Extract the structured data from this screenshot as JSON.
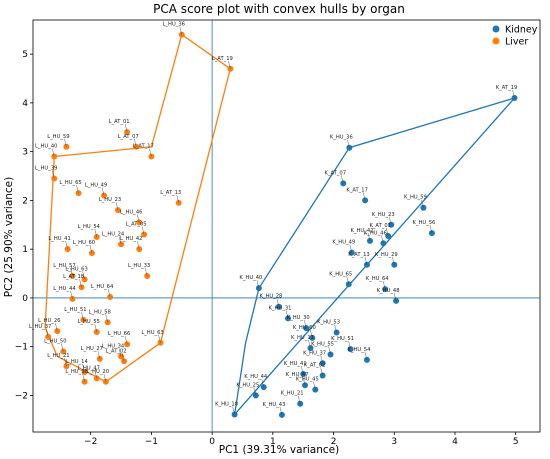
{
  "chart_data": {
    "type": "scatter",
    "title": "PCA score plot with convex hulls by organ",
    "xlabel": "PC1 (39.31% variance)",
    "ylabel": "PC2 (25.90% variance)",
    "xlim": [
      -2.95,
      5.4
    ],
    "ylim": [
      -2.75,
      5.7
    ],
    "xticks": [
      -2,
      -1,
      0,
      1,
      2,
      3,
      4,
      5
    ],
    "yticks": [
      -2,
      -1,
      0,
      1,
      2,
      3,
      4,
      5
    ],
    "reference_lines": {
      "x": 0,
      "y": 0,
      "color": "#1f77b4"
    },
    "grid": false,
    "legend_position": "top-right",
    "series": [
      {
        "name": "Kidney",
        "color": "#1f77b4",
        "hull": [
          [
            0.37,
            -2.39
          ],
          [
            4.98,
            4.1
          ],
          [
            2.26,
            3.08
          ],
          [
            0.77,
            0.2
          ],
          [
            0.55,
            -0.93
          ],
          [
            0.42,
            -2.0
          ]
        ],
        "points": [
          {
            "label": "K_AT_19",
            "x": 4.98,
            "y": 4.1
          },
          {
            "label": "K_HU_36",
            "x": 2.26,
            "y": 3.08
          },
          {
            "label": "K_AT_07",
            "x": 2.16,
            "y": 2.35
          },
          {
            "label": "K_AT_17",
            "x": 2.52,
            "y": 2.0
          },
          {
            "label": "K_HU_59",
            "x": 3.48,
            "y": 1.85
          },
          {
            "label": "K_HU_23",
            "x": 2.95,
            "y": 1.5
          },
          {
            "label": "K_HU_56",
            "x": 3.62,
            "y": 1.33
          },
          {
            "label": "K_AT_01",
            "x": 2.9,
            "y": 1.27
          },
          {
            "label": "K_HU_42",
            "x": 2.6,
            "y": 1.17
          },
          {
            "label": "K_HU_46",
            "x": 2.82,
            "y": 1.12
          },
          {
            "label": "K_HU_49",
            "x": 2.3,
            "y": 0.93
          },
          {
            "label": "K_AT_13",
            "x": 2.55,
            "y": 0.68
          },
          {
            "label": "K_HU_29",
            "x": 3.0,
            "y": 0.68
          },
          {
            "label": "K_HU_40",
            "x": 0.77,
            "y": 0.2
          },
          {
            "label": "K_HU_65",
            "x": 2.25,
            "y": 0.28
          },
          {
            "label": "K_HU_64",
            "x": 2.85,
            "y": 0.18
          },
          {
            "label": "K_HU_48",
            "x": 3.03,
            "y": -0.06
          },
          {
            "label": "K_HU_28",
            "x": 1.1,
            "y": -0.18
          },
          {
            "label": "K_HU_31",
            "x": 1.25,
            "y": -0.42
          },
          {
            "label": "K_HU_30",
            "x": 1.55,
            "y": -0.62
          },
          {
            "label": "K_HU_60",
            "x": 1.65,
            "y": -0.82
          },
          {
            "label": "K_HU_53",
            "x": 2.05,
            "y": -0.71
          },
          {
            "label": "K_HU_11",
            "x": 1.62,
            "y": -1.03
          },
          {
            "label": "K_HU_55",
            "x": 1.95,
            "y": -1.16
          },
          {
            "label": "K_HU_51",
            "x": 2.28,
            "y": -1.05
          },
          {
            "label": "K_HU_54",
            "x": 2.55,
            "y": -1.27
          },
          {
            "label": "K_HU_37",
            "x": 1.82,
            "y": -1.34
          },
          {
            "label": "K_HU_41",
            "x": 1.5,
            "y": -1.56
          },
          {
            "label": "K_AT_02",
            "x": 1.82,
            "y": -1.59
          },
          {
            "label": "K_HU_47",
            "x": 1.53,
            "y": -1.79
          },
          {
            "label": "K_HU_45",
            "x": 1.7,
            "y": -1.88
          },
          {
            "label": "K_HU_21",
            "x": 1.45,
            "y": -2.17
          },
          {
            "label": "K_HU_25",
            "x": 0.72,
            "y": -2.0
          },
          {
            "label": "K_HU_44",
            "x": 0.85,
            "y": -1.83
          },
          {
            "label": "K_HU_10",
            "x": 0.37,
            "y": -2.39
          },
          {
            "label": "K_HU_43",
            "x": 1.15,
            "y": -2.4
          }
        ]
      },
      {
        "name": "Liver",
        "color": "#ff7f0e",
        "hull": [
          [
            -2.6,
            2.9
          ],
          [
            -1.0,
            3.1
          ],
          [
            -0.5,
            5.4
          ],
          [
            0.3,
            4.7
          ],
          [
            -0.85,
            -0.92
          ],
          [
            -1.75,
            -1.72
          ],
          [
            -2.55,
            -1.2
          ],
          [
            -2.75,
            -0.6
          ]
        ],
        "points": [
          {
            "label": "L_HU_36",
            "x": -0.5,
            "y": 5.4
          },
          {
            "label": "L_AT_19",
            "x": 0.3,
            "y": 4.7
          },
          {
            "label": "L_AT_01",
            "x": -1.4,
            "y": 3.4
          },
          {
            "label": "L_AT_07",
            "x": -1.25,
            "y": 3.1
          },
          {
            "label": "L_AT_17",
            "x": -1.0,
            "y": 2.9
          },
          {
            "label": "L_HU_40",
            "x": -2.6,
            "y": 2.9
          },
          {
            "label": "L_HU_59",
            "x": -2.4,
            "y": 3.1
          },
          {
            "label": "L_HU_39",
            "x": -2.6,
            "y": 2.45
          },
          {
            "label": "L_HU_65",
            "x": -2.2,
            "y": 2.15
          },
          {
            "label": "L_HU_49",
            "x": -1.78,
            "y": 2.1
          },
          {
            "label": "L_AT_13",
            "x": -0.55,
            "y": 1.95
          },
          {
            "label": "L_HU_23",
            "x": -1.55,
            "y": 1.8
          },
          {
            "label": "L_HU_46",
            "x": -1.2,
            "y": 1.55
          },
          {
            "label": "L_HU_54",
            "x": -1.9,
            "y": 1.25
          },
          {
            "label": "L_AT_05",
            "x": -1.12,
            "y": 1.3
          },
          {
            "label": "L_HU_24",
            "x": -1.5,
            "y": 1.1
          },
          {
            "label": "L_HU_42",
            "x": -1.2,
            "y": 1.0
          },
          {
            "label": "L_HU_60",
            "x": -1.98,
            "y": 0.92
          },
          {
            "label": "L_HU_41",
            "x": -2.38,
            "y": 1.0
          },
          {
            "label": "L_HU_33",
            "x": -1.07,
            "y": 0.45
          },
          {
            "label": "L_HU_57",
            "x": -2.3,
            "y": 0.45
          },
          {
            "label": "L_HU_63",
            "x": -2.1,
            "y": 0.38
          },
          {
            "label": "L_AT_18",
            "x": -2.15,
            "y": 0.22
          },
          {
            "label": "L_HU_64",
            "x": -1.68,
            "y": 0.02
          },
          {
            "label": "L_HU_44",
            "x": -2.3,
            "y": -0.02
          },
          {
            "label": "L_HU_51",
            "x": -2.12,
            "y": -0.45
          },
          {
            "label": "L_HU_26",
            "x": -2.55,
            "y": -0.68
          },
          {
            "label": "L_HU_58",
            "x": -1.72,
            "y": -0.5
          },
          {
            "label": "L_HU_55",
            "x": -1.9,
            "y": -0.7
          },
          {
            "label": "L_HU_37",
            "x": -2.7,
            "y": -0.8
          },
          {
            "label": "L_HU_66",
            "x": -1.4,
            "y": -0.95
          },
          {
            "label": "L_HU_50",
            "x": -2.45,
            "y": -1.1
          },
          {
            "label": "L_HU_34",
            "x": -1.5,
            "y": -1.2
          },
          {
            "label": "L_AT_02",
            "x": -1.45,
            "y": -1.3
          },
          {
            "label": "L_HU_21",
            "x": -2.4,
            "y": -1.4
          },
          {
            "label": "L_HU_27",
            "x": -1.85,
            "y": -1.25
          },
          {
            "label": "L_HU_14",
            "x": -2.1,
            "y": -1.52
          },
          {
            "label": "L_HU_47",
            "x": -1.9,
            "y": -1.65
          },
          {
            "label": "L_HU_38",
            "x": -2.1,
            "y": -1.72
          },
          {
            "label": "L_HU_63b",
            "x": -0.85,
            "y": -0.92
          },
          {
            "label": "L_HU_20",
            "x": -1.75,
            "y": -1.72
          }
        ]
      }
    ]
  }
}
